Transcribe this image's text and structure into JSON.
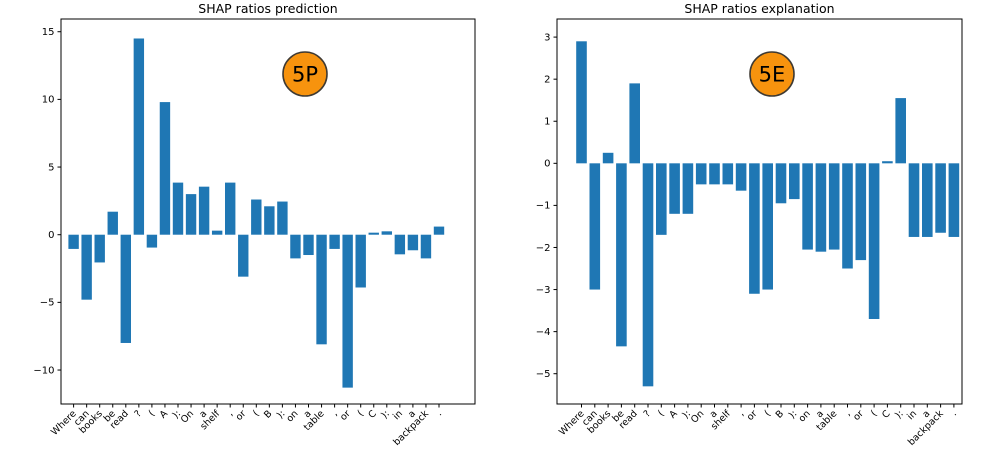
{
  "figure": {
    "background": "#ffffff",
    "bar_color": "#1f77b4",
    "badge_fill": "#f7930e",
    "badge_edge": "#3f3a33",
    "axis_color": "#000000"
  },
  "chart_data": [
    {
      "type": "bar",
      "title": "SHAP ratios prediction",
      "badge_label": "5P",
      "legend": "none",
      "grid": false,
      "xlabel": "",
      "ylabel": "",
      "yticks": [
        15,
        10,
        5,
        0,
        -5,
        -10
      ],
      "ylim": [
        -12.51,
        15.94
      ],
      "categories": [
        "Where",
        "can",
        "books",
        "be",
        "read",
        "?",
        "(",
        "A",
        "):",
        "On",
        "a",
        "shelf",
        ",",
        "or",
        "(",
        "B",
        "):",
        "on",
        "a",
        "table",
        ",",
        "or",
        "(",
        "C",
        "):",
        "in",
        "a",
        "backpack",
        "."
      ],
      "values": [
        -1.05,
        -4.8,
        -2.05,
        1.7,
        -8.0,
        14.5,
        -0.95,
        9.8,
        3.85,
        3.0,
        3.55,
        0.3,
        3.85,
        -3.1,
        2.6,
        2.1,
        2.45,
        -1.75,
        -1.5,
        -8.1,
        -1.05,
        -11.3,
        -3.9,
        0.15,
        0.25,
        -1.45,
        -1.15,
        -1.75,
        0.6
      ]
    },
    {
      "type": "bar",
      "title": "SHAP ratios explanation",
      "badge_label": "5E",
      "legend": "none",
      "grid": false,
      "xlabel": "",
      "ylabel": "",
      "yticks": [
        3,
        2,
        1,
        0,
        -1,
        -2,
        -3,
        -4,
        -5
      ],
      "ylim": [
        -5.72,
        3.43
      ],
      "categories": [
        "Where",
        "can",
        "books",
        "be",
        "read",
        "?",
        "(",
        "A",
        "):",
        "On",
        "a",
        "shelf",
        ",",
        "or",
        "(",
        "B",
        "):",
        "on",
        "a",
        "table",
        ",",
        "or",
        "(",
        "C",
        "):",
        "in",
        "a",
        "backpack",
        "."
      ],
      "values": [
        2.9,
        -3.0,
        0.25,
        -4.35,
        1.9,
        -5.3,
        -1.7,
        -1.2,
        -1.2,
        -0.5,
        -0.5,
        -0.5,
        -0.65,
        -3.1,
        -3.0,
        -0.95,
        -0.85,
        -2.05,
        -2.1,
        -2.05,
        -2.5,
        -2.3,
        -3.7,
        0.05,
        1.55,
        -1.75,
        -1.75,
        -1.65,
        -1.75
      ]
    }
  ]
}
